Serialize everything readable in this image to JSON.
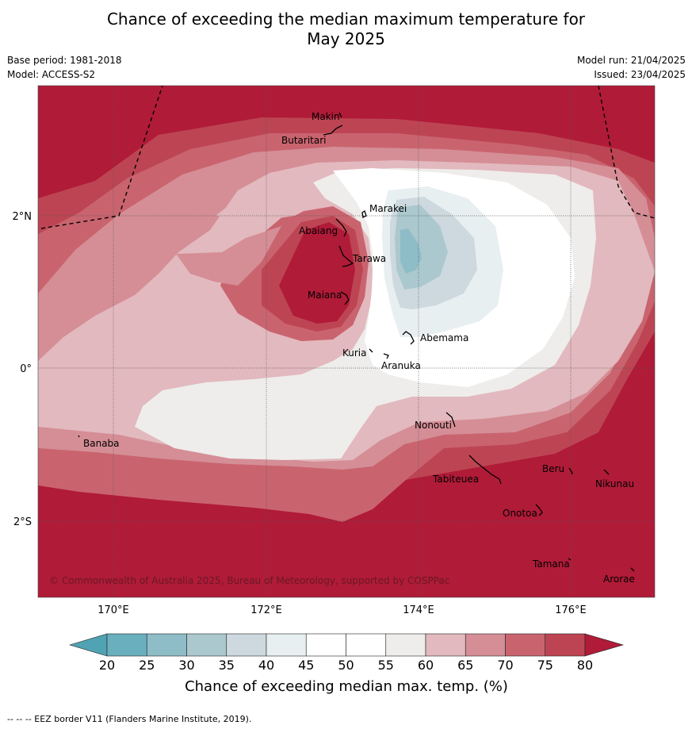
{
  "title_line1": "Chance of exceeding the median maximum temperature for",
  "title_line2": "May 2025",
  "meta": {
    "base_period": "Base period: 1981-2018",
    "model": "Model: ACCESS-S2",
    "model_run": "Model run: 21/04/2025",
    "issued": "Issued: 23/04/2025"
  },
  "map": {
    "lon_ticks": [
      "170°E",
      "172°E",
      "174°E",
      "176°E"
    ],
    "lat_ticks": [
      "2°N",
      "0°",
      "2°S"
    ],
    "copyright": "© Commonwealth of Australia 2025, Bureau of Meteorology, supported by COSPPac",
    "places": [
      "Makin",
      "Butaritari",
      "Marakei",
      "Abaiang",
      "Tarawa",
      "Maiana",
      "Abemama",
      "Kuria",
      "Aranuka",
      "Nonouti",
      "Banaba",
      "Tabiteuea",
      "Beru",
      "Nikunau",
      "Onotoa",
      "Tamana",
      "Arorae"
    ]
  },
  "colorbar": {
    "label": "Chance of exceeding median max. temp. (%)",
    "ticks": [
      "20",
      "25",
      "30",
      "35",
      "40",
      "45",
      "50",
      "55",
      "60",
      "65",
      "70",
      "75",
      "80"
    ],
    "colors": [
      "#4fa3b3",
      "#6aafbe",
      "#8ebcc7",
      "#abc8cf",
      "#cdd9de",
      "#e8eff1",
      "#ffffff",
      "#ffffff",
      "#eeedeb",
      "#e2b9be",
      "#d58e96",
      "#c9646f",
      "#bd4553",
      "#b01b38"
    ]
  },
  "footnote": "-- -- -- EEZ border V11 (Flanders Marine Institute, 2019)."
}
